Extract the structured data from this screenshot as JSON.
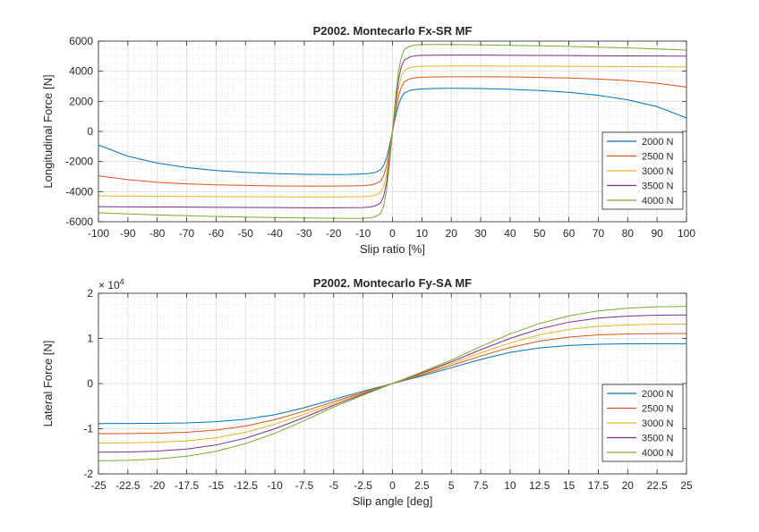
{
  "chart_data": [
    {
      "type": "line",
      "title": "P2002. Montecarlo Fx-SR MF",
      "xlabel": "Slip ratio [%]",
      "ylabel": "Longitudinal Force [N]",
      "xlim": [
        -100,
        100
      ],
      "ylim": [
        -6000,
        6000
      ],
      "xticks": [
        -100,
        -90,
        -80,
        -70,
        -60,
        -50,
        -40,
        -30,
        -20,
        -10,
        0,
        10,
        20,
        30,
        40,
        50,
        60,
        70,
        80,
        90,
        100
      ],
      "xtick_labels": [
        "-100",
        "-90",
        "-80",
        "-70",
        "-60",
        "-50",
        "-40",
        "-30",
        "-20",
        "-10",
        "0",
        "10",
        "20",
        "30",
        "40",
        "50",
        "60",
        "70",
        "80",
        "90",
        "100"
      ],
      "yticks": [
        -6000,
        -4000,
        -2000,
        0,
        2000,
        4000,
        6000
      ],
      "ytick_labels": [
        "-6000",
        "-4000",
        "-2000",
        "0",
        "2000",
        "4000",
        "6000"
      ],
      "grid": true,
      "minor_grid": true,
      "legend_position": "bottom-right",
      "x": [
        -100,
        -90,
        -80,
        -70,
        -60,
        -50,
        -40,
        -30,
        -20,
        -15,
        -10,
        -8,
        -6,
        -4,
        -3,
        -2,
        -1,
        0,
        1,
        2,
        3,
        4,
        6,
        8,
        10,
        15,
        20,
        30,
        40,
        50,
        60,
        70,
        80,
        90,
        100
      ],
      "series": [
        {
          "name": "2000 N",
          "color": "#0072BD",
          "values": [
            -900,
            -1650,
            -2100,
            -2400,
            -2600,
            -2720,
            -2800,
            -2850,
            -2870,
            -2860,
            -2820,
            -2790,
            -2730,
            -2550,
            -2250,
            -1750,
            -950,
            0,
            950,
            1750,
            2250,
            2550,
            2730,
            2790,
            2820,
            2860,
            2870,
            2850,
            2800,
            2720,
            2600,
            2400,
            2100,
            1650,
            900
          ]
        },
        {
          "name": "2500 N",
          "color": "#D95319",
          "values": [
            -2950,
            -3200,
            -3380,
            -3480,
            -3550,
            -3590,
            -3620,
            -3630,
            -3630,
            -3620,
            -3600,
            -3570,
            -3500,
            -3300,
            -2950,
            -2300,
            -1250,
            0,
            1250,
            2300,
            2950,
            3300,
            3500,
            3570,
            3600,
            3620,
            3630,
            3630,
            3620,
            3590,
            3550,
            3480,
            3380,
            3200,
            2950
          ]
        },
        {
          "name": "3000 N",
          "color": "#EDB120",
          "values": [
            -4280,
            -4300,
            -4310,
            -4320,
            -4330,
            -4340,
            -4345,
            -4350,
            -4350,
            -4345,
            -4335,
            -4310,
            -4250,
            -4050,
            -3650,
            -2850,
            -1550,
            0,
            1550,
            2850,
            3650,
            4050,
            4250,
            4310,
            4335,
            4345,
            4350,
            4350,
            4345,
            4340,
            4330,
            4320,
            4310,
            4300,
            4280
          ]
        },
        {
          "name": "3500 N",
          "color": "#7E2F8E",
          "values": [
            -5000,
            -5010,
            -5020,
            -5030,
            -5040,
            -5050,
            -5060,
            -5070,
            -5070,
            -5065,
            -5055,
            -5030,
            -4960,
            -4750,
            -4300,
            -3400,
            -1850,
            0,
            1850,
            3400,
            4300,
            4750,
            4960,
            5030,
            5055,
            5065,
            5070,
            5070,
            5060,
            5050,
            5040,
            5030,
            5020,
            5010,
            5000
          ]
        },
        {
          "name": "4000 N",
          "color": "#77AC30",
          "values": [
            -5400,
            -5480,
            -5550,
            -5600,
            -5650,
            -5690,
            -5720,
            -5750,
            -5770,
            -5775,
            -5770,
            -5750,
            -5680,
            -5450,
            -4950,
            -3900,
            -2150,
            0,
            2150,
            3900,
            4950,
            5450,
            5680,
            5750,
            5770,
            5775,
            5770,
            5750,
            5720,
            5690,
            5650,
            5600,
            5550,
            5480,
            5400
          ]
        }
      ]
    },
    {
      "type": "line",
      "title": "P2002. Montecarlo Fy-SA MF",
      "xlabel": "Slip angle [deg]",
      "ylabel": "Lateral Force [N]",
      "xlim": [
        -25,
        25
      ],
      "ylim": [
        -20000,
        20000
      ],
      "xticks": [
        -25,
        -22.5,
        -20,
        -17.5,
        -15,
        -12.5,
        -10,
        -7.5,
        -5,
        -2.5,
        0,
        2.5,
        5,
        7.5,
        10,
        12.5,
        15,
        17.5,
        20,
        22.5,
        25
      ],
      "xtick_labels": [
        "-25",
        "-22.5",
        "-20",
        "-17.5",
        "-15",
        "-12.5",
        "-10",
        "-7.5",
        "-5",
        "-2.5",
        "0",
        "2.5",
        "5",
        "7.5",
        "10",
        "12.5",
        "15",
        "17.5",
        "20",
        "22.5",
        "25"
      ],
      "yticks": [
        -20000,
        -10000,
        0,
        10000,
        20000
      ],
      "ytick_labels": [
        "-2",
        "-1",
        "0",
        "1",
        "2"
      ],
      "y_multiplier_base": "× 10",
      "y_multiplier_exp": "4",
      "grid": true,
      "minor_grid": true,
      "legend_position": "bottom-right",
      "x": [
        -25,
        -22.5,
        -20,
        -17.5,
        -15,
        -12.5,
        -10,
        -7.5,
        -5,
        -2.5,
        0,
        2.5,
        5,
        7.5,
        10,
        12.5,
        15,
        17.5,
        20,
        22.5,
        25
      ],
      "series": [
        {
          "name": "2000 N",
          "color": "#0072BD",
          "values": [
            -8850,
            -8840,
            -8800,
            -8700,
            -8450,
            -7900,
            -6900,
            -5350,
            -3500,
            -1700,
            0,
            1700,
            3500,
            5350,
            6900,
            7900,
            8450,
            8700,
            8800,
            8840,
            8850
          ]
        },
        {
          "name": "2500 N",
          "color": "#D95319",
          "values": [
            -11100,
            -11070,
            -11000,
            -10800,
            -10300,
            -9400,
            -8000,
            -6100,
            -4000,
            -1950,
            0,
            1950,
            4000,
            6100,
            8000,
            9400,
            10300,
            10800,
            11000,
            11070,
            11100
          ]
        },
        {
          "name": "3000 N",
          "color": "#EDB120",
          "values": [
            -13200,
            -13150,
            -13000,
            -12700,
            -12000,
            -10800,
            -9000,
            -6800,
            -4400,
            -2150,
            0,
            2150,
            4400,
            6800,
            9000,
            10800,
            12000,
            12700,
            13000,
            13150,
            13200
          ]
        },
        {
          "name": "3500 N",
          "color": "#7E2F8E",
          "values": [
            -15200,
            -15150,
            -14950,
            -14500,
            -13600,
            -12100,
            -10000,
            -7500,
            -4800,
            -2350,
            0,
            2350,
            4800,
            7500,
            10000,
            12100,
            13600,
            14500,
            14950,
            15150,
            15200
          ]
        },
        {
          "name": "4000 N",
          "color": "#77AC30",
          "values": [
            -17100,
            -17000,
            -16700,
            -16100,
            -15000,
            -13300,
            -11000,
            -8200,
            -5200,
            -2550,
            0,
            2550,
            5200,
            8200,
            11000,
            13300,
            15000,
            16100,
            16700,
            17000,
            17100
          ]
        }
      ]
    }
  ]
}
